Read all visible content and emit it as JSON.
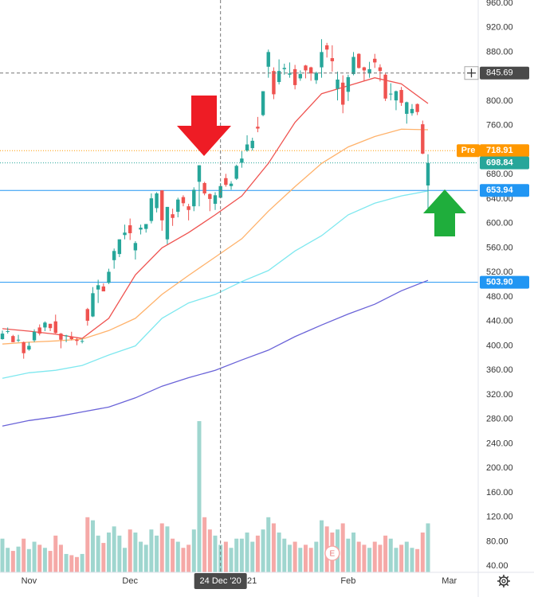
{
  "chart_data": {
    "type": "candlestick",
    "xlim": [
      -0.45,
      89.44
    ],
    "xticks": [
      {
        "value": 5,
        "label": "Nov"
      },
      {
        "value": 24,
        "label": "Dec"
      },
      {
        "value": 46,
        "label": "2021"
      },
      {
        "value": 65,
        "label": "Feb"
      },
      {
        "value": 84,
        "label": "Mar"
      }
    ],
    "ylim": [
      30,
      965
    ],
    "yticks": [
      {
        "value": 40,
        "label": "40.00"
      },
      {
        "value": 80,
        "label": "80.00"
      },
      {
        "value": 120,
        "label": "120.00"
      },
      {
        "value": 160,
        "label": "160.00"
      },
      {
        "value": 200,
        "label": "200.00"
      },
      {
        "value": 240,
        "label": "240.00"
      },
      {
        "value": 280,
        "label": "280.00"
      },
      {
        "value": 320,
        "label": "320.00"
      },
      {
        "value": 360,
        "label": "360.00"
      },
      {
        "value": 400,
        "label": "400.00"
      },
      {
        "value": 440,
        "label": "440.00"
      },
      {
        "value": 480,
        "label": "480.00"
      },
      {
        "value": 520,
        "label": "520.00"
      },
      {
        "value": 560,
        "label": "560.00"
      },
      {
        "value": 600,
        "label": "600.00"
      },
      {
        "value": 640,
        "label": "640.00"
      },
      {
        "value": 680,
        "label": "680.00"
      },
      {
        "value": 720,
        "label": "720.00"
      },
      {
        "value": 760,
        "label": "760.00"
      },
      {
        "value": 800,
        "label": "800.00"
      },
      {
        "value": 840,
        "label": "840.00"
      },
      {
        "value": 880,
        "label": "880.00"
      },
      {
        "value": 920,
        "label": "920.00"
      },
      {
        "value": 960,
        "label": "960.00"
      }
    ],
    "grid": false,
    "up_color": "#26a69a",
    "down_color": "#ef5350",
    "volume_up_color": "#9fd6cf",
    "volume_down_color": "#f5a9a7",
    "open": [
      411,
      423,
      416,
      409,
      406,
      394,
      409,
      430,
      430,
      436,
      440,
      420,
      416,
      415,
      410,
      408,
      460,
      448,
      492,
      497,
      503,
      540,
      550,
      581,
      597,
      556,
      590,
      591,
      604,
      625,
      654,
      574,
      615,
      619,
      643,
      628,
      628,
      668,
      666,
      648,
      632,
      642,
      674,
      661,
      673,
      699,
      719,
      723,
      758,
      777,
      856,
      849,
      831,
      852,
      843,
      852,
      837,
      858,
      855,
      834,
      855,
      891,
      870,
      820,
      830,
      815,
      844,
      877,
      855,
      845,
      869,
      855,
      843,
      812,
      801,
      818,
      779,
      780,
      795,
      762,
      662
    ],
    "high": [
      425,
      430,
      418,
      418,
      407,
      406,
      427,
      435,
      440,
      436,
      451,
      421,
      418,
      423,
      413,
      412,
      462,
      496,
      508,
      502,
      526,
      559,
      574,
      598,
      608,
      571,
      598,
      598,
      649,
      651,
      654,
      627,
      624,
      642,
      646,
      632,
      659,
      695,
      668,
      649,
      651,
      666,
      681,
      669,
      696,
      718,
      744,
      740,
      774,
      816,
      884,
      855,
      868,
      861,
      863,
      859,
      850,
      859,
      856,
      848,
      901,
      895,
      891,
      848,
      842,
      843,
      880,
      878,
      856,
      864,
      877,
      860,
      845,
      829,
      817,
      823,
      799,
      795,
      796,
      768,
      713
    ],
    "low": [
      410,
      420,
      406,
      406,
      379,
      392,
      406,
      417,
      424,
      424,
      420,
      396,
      406,
      409,
      401,
      404,
      433,
      447,
      470,
      489,
      501,
      526,
      545,
      574,
      573,
      541,
      582,
      585,
      600,
      618,
      588,
      566,
      596,
      610,
      628,
      605,
      620,
      628,
      646,
      620,
      622,
      641,
      660,
      655,
      671,
      691,
      717,
      719,
      749,
      775,
      838,
      803,
      827,
      843,
      838,
      819,
      833,
      837,
      833,
      828,
      838,
      871,
      848,
      801,
      780,
      800,
      842,
      853,
      833,
      838,
      854,
      832,
      800,
      801,
      785,
      792,
      763,
      776,
      777,
      713,
      619
    ],
    "close": [
      420,
      424,
      406,
      410,
      388,
      400,
      423,
      420,
      438,
      429,
      421,
      410,
      417,
      411,
      408,
      408,
      441,
      486,
      499,
      489,
      521,
      555,
      574,
      585,
      584,
      568,
      593,
      599,
      641,
      649,
      605,
      627,
      609,
      639,
      633,
      622,
      655,
      695,
      649,
      640,
      646,
      661,
      663,
      665,
      694,
      706,
      729,
      735,
      755,
      816,
      880,
      811,
      849,
      854,
      845,
      826,
      844,
      850,
      845,
      846,
      880,
      884,
      865,
      835,
      794,
      839,
      872,
      854,
      850,
      852,
      863,
      849,
      804,
      812,
      816,
      797,
      798,
      787,
      782,
      714,
      698.84
    ],
    "volume": [
      85,
      70,
      65,
      72,
      85,
      68,
      80,
      75,
      70,
      65,
      90,
      75,
      60,
      58,
      55,
      60,
      120,
      115,
      90,
      78,
      95,
      105,
      90,
      70,
      100,
      95,
      80,
      75,
      100,
      90,
      110,
      105,
      85,
      80,
      70,
      75,
      100,
      277,
      120,
      100,
      90,
      75,
      80,
      70,
      85,
      85,
      95,
      80,
      90,
      100,
      120,
      110,
      95,
      85,
      75,
      80,
      70,
      75,
      70,
      80,
      115,
      105,
      95,
      100,
      110,
      85,
      95,
      80,
      75,
      70,
      80,
      75,
      90,
      85,
      70,
      75,
      80,
      70,
      68,
      95,
      110
    ],
    "moving_averages": [
      {
        "color": "#ef5350",
        "x": [
          0,
          5,
          10,
          15,
          20,
          25,
          30,
          35,
          40,
          45,
          50,
          55,
          60,
          65,
          70,
          75,
          80
        ],
        "values": [
          428,
          424,
          419,
          412,
          445,
          516,
          560,
          585,
          614,
          645,
          698,
          765,
          812,
          825,
          838,
          828,
          796
        ]
      },
      {
        "color": "#ffb26b",
        "x": [
          0,
          5,
          10,
          15,
          20,
          25,
          30,
          35,
          40,
          45,
          50,
          55,
          60,
          65,
          70,
          75,
          80
        ],
        "values": [
          403,
          406,
          408,
          411,
          425,
          445,
          484,
          515,
          545,
          575,
          620,
          660,
          698,
          725,
          742,
          754,
          753
        ]
      },
      {
        "color": "#7fe8ef",
        "x": [
          0,
          5,
          10,
          15,
          20,
          25,
          30,
          35,
          40,
          45,
          50,
          55,
          60,
          65,
          70,
          75,
          80
        ],
        "values": [
          347,
          356,
          360,
          368,
          385,
          400,
          445,
          470,
          484,
          505,
          523,
          555,
          580,
          614,
          633,
          645,
          653
        ]
      },
      {
        "color": "#6a63d8",
        "x": [
          0,
          5,
          10,
          15,
          20,
          25,
          30,
          35,
          40,
          45,
          50,
          55,
          60,
          65,
          70,
          75,
          80
        ],
        "values": [
          269,
          278,
          284,
          292,
          300,
          315,
          334,
          348,
          360,
          377,
          393,
          415,
          434,
          452,
          468,
          490,
          507
        ]
      }
    ],
    "price_lines": [
      {
        "value": 718.91,
        "tag": "Pre",
        "color": "#ff9800",
        "style": "dotted"
      },
      {
        "value": 698.84,
        "color": "#26a69a",
        "style": "dotted"
      },
      {
        "value": 653.94,
        "color": "#2196f3",
        "style": "solid"
      },
      {
        "value": 503.9,
        "label": "503.90",
        "color": "#2196f3",
        "style": "solid"
      }
    ],
    "crosshair": {
      "price": 845.69,
      "index": 41,
      "date_label": "24 Dec '20"
    },
    "events": [
      {
        "label": "E",
        "index": 62
      }
    ]
  }
}
